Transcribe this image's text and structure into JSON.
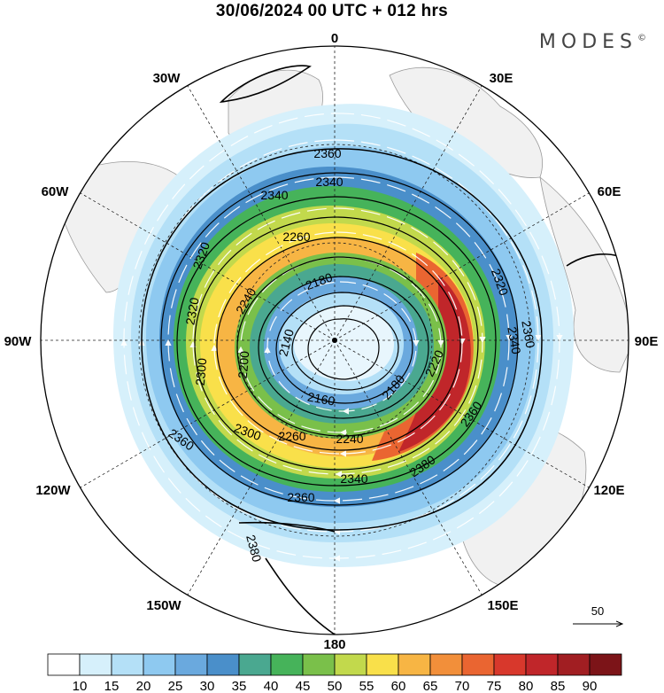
{
  "title": "30/06/2024  00 UTC  + 012 hrs",
  "brand": "MODES",
  "brand_mark": "©",
  "meridian_labels": [
    "0",
    "30E",
    "60E",
    "90E",
    "120E",
    "150E",
    "180",
    "150W",
    "120W",
    "90W",
    "60W",
    "30W"
  ],
  "contour_labels": [
    "2360",
    "2340",
    "2340",
    "2320",
    "2260",
    "2320",
    "2240",
    "2180",
    "2320",
    "2340",
    "2140",
    "2300",
    "2200",
    "2220",
    "2160",
    "2180",
    "2300",
    "2260",
    "2240",
    "2360",
    "2360",
    "2380",
    "2340",
    "2360",
    "2380",
    "2360"
  ],
  "vector_reference": "50",
  "colorbar": {
    "ticks": [
      "10",
      "15",
      "20",
      "25",
      "30",
      "35",
      "40",
      "45",
      "50",
      "55",
      "60",
      "65",
      "70",
      "75",
      "80",
      "85",
      "90"
    ],
    "colors": [
      "#ffffff",
      "#d6f0fb",
      "#b4e0f7",
      "#8ec9f0",
      "#6aa9de",
      "#4a8fca",
      "#4aa890",
      "#46b35a",
      "#7ac04a",
      "#c2d94c",
      "#f9e04a",
      "#f7b544",
      "#f28f3a",
      "#ea6531",
      "#d8382c",
      "#c0262a",
      "#a11e22",
      "#7c1418"
    ]
  }
}
